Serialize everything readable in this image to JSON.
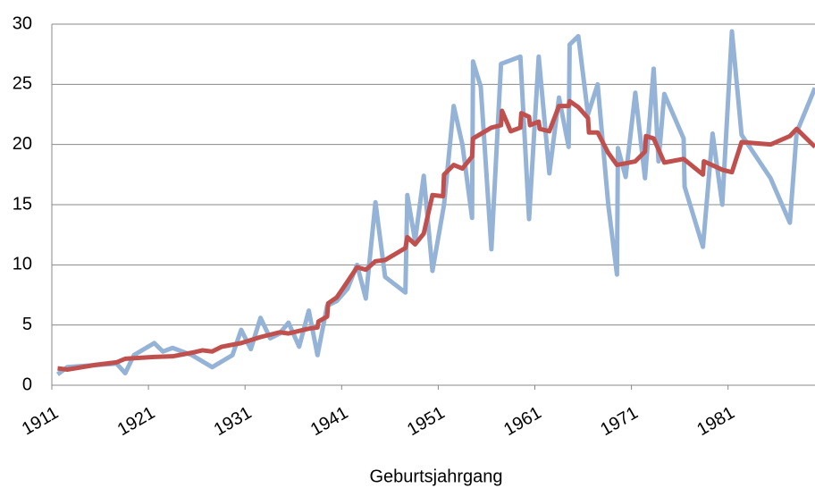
{
  "chart_data": {
    "type": "line",
    "x_label": "Geburtsjahrgang",
    "xlim": [
      1911,
      1990
    ],
    "xticks": [
      1911,
      1921,
      1931,
      1941,
      1951,
      1961,
      1971,
      1981
    ],
    "ylim": [
      0,
      30
    ],
    "yticks": [
      0,
      5,
      10,
      15,
      20,
      25,
      30
    ],
    "grid": true,
    "series": [
      {
        "color": "#95b3d7",
        "x": [
          1911.6,
          1912.6,
          1917.7,
          1918.6,
          1919.5,
          1921.6,
          1922.5,
          1923.5,
          1925.5,
          1927.6,
          1929.7,
          1930.6,
          1931.6,
          1932.6,
          1933.6,
          1934.6,
          1935.5,
          1936.6,
          1937.6,
          1938.5,
          1939.5,
          1940.5,
          1941.6,
          1942.6,
          1943.5,
          1944.5,
          1945.5,
          1947.6,
          1947.8,
          1948.6,
          1949.5,
          1950.4,
          1951.6,
          1952.6,
          1953.5,
          1954.5,
          1954.6,
          1955.4,
          1956.5,
          1957.5,
          1959.5,
          1960.4,
          1961.4,
          1962.5,
          1963.5,
          1964.5,
          1964.6,
          1965.5,
          1966.5,
          1967.5,
          1968.6,
          1969.5,
          1969.6,
          1970.4,
          1971.4,
          1972.4,
          1973.3,
          1973.8,
          1974.4,
          1976.4,
          1976.5,
          1978.4,
          1979.4,
          1980.4,
          1981.4,
          1982.4,
          1985.4,
          1987.4,
          1988.1,
          1990
        ],
        "values": [
          0.9,
          1.5,
          1.8,
          1.0,
          2.5,
          3.5,
          2.8,
          3.1,
          2.5,
          1.5,
          2.5,
          4.6,
          3.0,
          5.6,
          3.9,
          4.3,
          5.2,
          3.2,
          6.2,
          2.5,
          6.6,
          7.0,
          8.0,
          10.0,
          7.2,
          15.2,
          9.0,
          7.7,
          15.8,
          12.0,
          17.4,
          9.5,
          15.0,
          23.2,
          20.0,
          13.9,
          26.9,
          24.8,
          11.3,
          26.7,
          27.3,
          13.8,
          27.3,
          17.6,
          23.9,
          19.8,
          28.3,
          29.0,
          22.5,
          25.0,
          15.0,
          9.2,
          19.7,
          17.3,
          24.3,
          17.2,
          26.3,
          18.6,
          24.2,
          20.5,
          16.5,
          11.5,
          20.9,
          15.0,
          29.4,
          20.8,
          17.2,
          13.5,
          21.0,
          24.7
        ]
      },
      {
        "color": "#c0504d",
        "x": [
          1911.6,
          1912.6,
          1915.6,
          1917.7,
          1918.6,
          1921.6,
          1923.5,
          1925.5,
          1926.6,
          1927.6,
          1928.6,
          1930.6,
          1932.6,
          1934.6,
          1935.5,
          1937.6,
          1938.5,
          1938.6,
          1939.5,
          1939.6,
          1940.5,
          1941.6,
          1942.6,
          1943.5,
          1944.5,
          1945.5,
          1947.6,
          1947.8,
          1948.6,
          1949.5,
          1950.4,
          1951.5,
          1951.6,
          1952.6,
          1953.5,
          1954.5,
          1954.6,
          1956.5,
          1957.5,
          1957.6,
          1958.5,
          1959.5,
          1959.6,
          1960.4,
          1960.5,
          1961.4,
          1961.5,
          1962.5,
          1963.5,
          1964.5,
          1964.6,
          1965.5,
          1966.5,
          1966.6,
          1967.5,
          1968.6,
          1969.5,
          1971.4,
          1972.4,
          1972.5,
          1973.3,
          1974.4,
          1976.4,
          1978.4,
          1978.5,
          1980.4,
          1981.4,
          1982.4,
          1985.4,
          1987.4,
          1988.1,
          1990
        ],
        "values": [
          1.4,
          1.3,
          1.7,
          1.9,
          2.2,
          2.35,
          2.4,
          2.7,
          2.9,
          2.8,
          3.2,
          3.5,
          4.0,
          4.4,
          4.3,
          4.7,
          4.8,
          5.3,
          5.7,
          6.8,
          7.3,
          8.6,
          9.8,
          9.6,
          10.3,
          10.4,
          11.4,
          12.3,
          11.7,
          12.6,
          15.8,
          15.7,
          17.5,
          18.3,
          18.0,
          19.0,
          20.5,
          21.4,
          21.6,
          22.8,
          21.1,
          21.4,
          22.6,
          22.3,
          21.6,
          21.9,
          21.3,
          21.1,
          23.2,
          23.2,
          23.6,
          23.1,
          22.2,
          21.0,
          21.0,
          19.3,
          18.3,
          18.6,
          19.4,
          20.7,
          20.5,
          18.5,
          18.8,
          17.5,
          18.6,
          17.9,
          17.7,
          20.2,
          20.0,
          20.7,
          21.3,
          19.8
        ]
      }
    ]
  }
}
